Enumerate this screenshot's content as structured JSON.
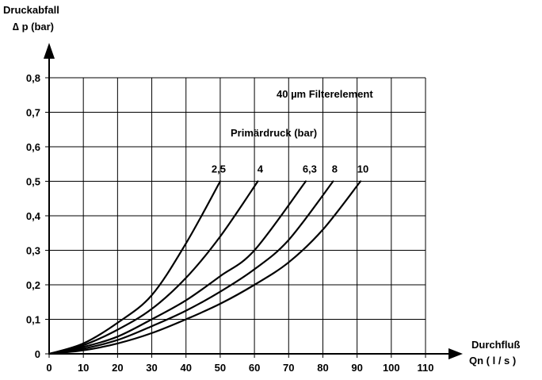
{
  "chart_data": {
    "type": "line",
    "y_axis_title_line1": "Druckabfall",
    "y_axis_title_line2": "∆ p (bar)",
    "x_axis_title_line1": "Durchfluß",
    "x_axis_title_line2": "Qn ( l / s )",
    "annotation": "40 µm Filterelement",
    "legend_title": "Primärdruck (bar)",
    "xlim": [
      0,
      110
    ],
    "ylim": [
      0,
      0.8
    ],
    "x_ticks": [
      0,
      10,
      20,
      30,
      40,
      50,
      60,
      70,
      80,
      90,
      100,
      110
    ],
    "x_tick_labels": [
      "0",
      "10",
      "20",
      "30",
      "40",
      "50",
      "60",
      "70",
      "80",
      "90",
      "100",
      "110"
    ],
    "y_ticks": [
      0,
      0.1,
      0.2,
      0.3,
      0.4,
      0.5,
      0.6,
      0.7,
      0.8
    ],
    "y_tick_labels": [
      "0",
      "0,1",
      "0,2",
      "0,3",
      "0,4",
      "0,5",
      "0,6",
      "0,7",
      "0,8"
    ],
    "grid": true,
    "series": [
      {
        "name": "2,5",
        "x": [
          0,
          10,
          20,
          30,
          40,
          50
        ],
        "y": [
          0,
          0.03,
          0.09,
          0.17,
          0.32,
          0.5
        ]
      },
      {
        "name": "4",
        "x": [
          0,
          10,
          20,
          30,
          40,
          50,
          61
        ],
        "y": [
          0,
          0.025,
          0.07,
          0.13,
          0.22,
          0.34,
          0.5
        ]
      },
      {
        "name": "6,3",
        "x": [
          0,
          10,
          20,
          30,
          40,
          50,
          60,
          75
        ],
        "y": [
          0,
          0.02,
          0.05,
          0.1,
          0.155,
          0.225,
          0.3,
          0.5
        ]
      },
      {
        "name": "8",
        "x": [
          0,
          10,
          20,
          30,
          40,
          50,
          60,
          70,
          83
        ],
        "y": [
          0,
          0.015,
          0.04,
          0.08,
          0.125,
          0.18,
          0.245,
          0.33,
          0.5
        ]
      },
      {
        "name": "10",
        "x": [
          0,
          10,
          20,
          30,
          40,
          50,
          60,
          70,
          80,
          91
        ],
        "y": [
          0,
          0.01,
          0.03,
          0.06,
          0.1,
          0.145,
          0.2,
          0.265,
          0.36,
          0.5
        ]
      }
    ]
  }
}
